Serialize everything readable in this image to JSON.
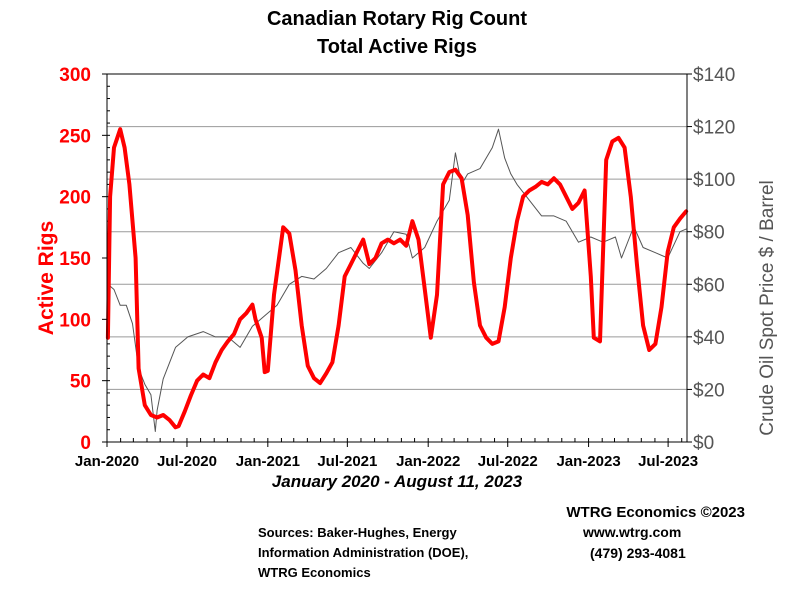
{
  "chart_data": {
    "type": "line",
    "title": "Canadian Rotary Rig Count",
    "subtitle": "Total Active Rigs",
    "xlabel": "January 2020 - August 11, 2023",
    "ylabel": "Active Rigs",
    "ylabel_right": "Crude Oil Spot Price $ / Barrel",
    "ylim": [
      0,
      300
    ],
    "ylim_right": [
      0,
      140
    ],
    "y_ticks": [
      "0",
      "50",
      "100",
      "150",
      "200",
      "250",
      "300"
    ],
    "y_ticks_right": [
      "$0",
      "$20",
      "$40",
      "$60",
      "$80",
      "$100",
      "$120",
      "$140"
    ],
    "x_ticks": [
      "Jan-2020",
      "Jul-2020",
      "Jan-2021",
      "Jul-2021",
      "Jan-2022",
      "Jul-2022",
      "Jan-2023",
      "Jul-2023"
    ],
    "grid": true,
    "colors": {
      "rigs": "#ff0000",
      "oil": "#555555",
      "left_axis_text": "#ff0000",
      "right_axis_text": "#555555"
    },
    "series": [
      {
        "axis": "left",
        "x": [
          "2020-01-03",
          "2020-01-08",
          "2020-01-17",
          "2020-01-31",
          "2020-02-10",
          "2020-02-21",
          "2020-03-06",
          "2020-03-13",
          "2020-03-27",
          "2020-04-10",
          "2020-04-24",
          "2020-05-08",
          "2020-05-22",
          "2020-06-05",
          "2020-06-12",
          "2020-06-26",
          "2020-07-10",
          "2020-07-24",
          "2020-08-07",
          "2020-08-21",
          "2020-09-04",
          "2020-09-18",
          "2020-10-02",
          "2020-10-16",
          "2020-10-30",
          "2020-11-13",
          "2020-11-27",
          "2020-12-04",
          "2020-12-18",
          "2020-12-25",
          "2021-01-01",
          "2021-01-15",
          "2021-02-05",
          "2021-02-19",
          "2021-03-05",
          "2021-03-19",
          "2021-04-02",
          "2021-04-16",
          "2021-04-30",
          "2021-05-14",
          "2021-05-28",
          "2021-06-11",
          "2021-06-25",
          "2021-07-09",
          "2021-07-23",
          "2021-08-06",
          "2021-08-20",
          "2021-09-03",
          "2021-09-17",
          "2021-10-01",
          "2021-10-15",
          "2021-10-29",
          "2021-11-12",
          "2021-11-26",
          "2021-12-10",
          "2021-12-24",
          "2022-01-07",
          "2022-01-21",
          "2022-02-04",
          "2022-02-18",
          "2022-03-04",
          "2022-03-18",
          "2022-04-01",
          "2022-04-15",
          "2022-04-29",
          "2022-05-13",
          "2022-05-27",
          "2022-06-10",
          "2022-06-24",
          "2022-07-08",
          "2022-07-22",
          "2022-08-05",
          "2022-08-19",
          "2022-09-02",
          "2022-09-16",
          "2022-09-30",
          "2022-10-14",
          "2022-10-28",
          "2022-11-11",
          "2022-11-25",
          "2022-12-09",
          "2022-12-23",
          "2023-01-06",
          "2023-01-13",
          "2023-01-27",
          "2023-02-10",
          "2023-02-24",
          "2023-03-10",
          "2023-03-24",
          "2023-04-07",
          "2023-04-21",
          "2023-05-05",
          "2023-05-19",
          "2023-06-02",
          "2023-06-16",
          "2023-06-30",
          "2023-07-14",
          "2023-07-28",
          "2023-08-11"
        ],
        "values": [
          85,
          200,
          240,
          255,
          240,
          210,
          150,
          60,
          30,
          22,
          20,
          22,
          18,
          12,
          13,
          25,
          38,
          50,
          55,
          52,
          65,
          75,
          82,
          88,
          100,
          105,
          112,
          100,
          85,
          57,
          58,
          120,
          175,
          170,
          140,
          95,
          62,
          52,
          48,
          56,
          65,
          95,
          135,
          145,
          155,
          165,
          145,
          150,
          162,
          165,
          162,
          165,
          160,
          180,
          165,
          125,
          85,
          120,
          210,
          220,
          222,
          215,
          185,
          130,
          95,
          85,
          80,
          82,
          110,
          150,
          180,
          200,
          205,
          208,
          212,
          210,
          215,
          210,
          200,
          190,
          195,
          205,
          135,
          85,
          82,
          230,
          245,
          248,
          240,
          200,
          145,
          95,
          75,
          80,
          110,
          155,
          175,
          182,
          188
        ]
      },
      {
        "axis": "right",
        "x": [
          "2020-01-03",
          "2020-01-17",
          "2020-01-31",
          "2020-02-14",
          "2020-02-28",
          "2020-03-13",
          "2020-03-27",
          "2020-04-10",
          "2020-04-20",
          "2020-04-24",
          "2020-05-08",
          "2020-05-22",
          "2020-06-05",
          "2020-06-19",
          "2020-07-03",
          "2020-08-07",
          "2020-09-04",
          "2020-10-02",
          "2020-10-30",
          "2020-11-27",
          "2020-12-25",
          "2021-01-22",
          "2021-02-19",
          "2021-03-19",
          "2021-04-16",
          "2021-05-14",
          "2021-06-11",
          "2021-07-09",
          "2021-08-06",
          "2021-08-20",
          "2021-09-17",
          "2021-10-15",
          "2021-11-12",
          "2021-11-26",
          "2021-12-24",
          "2022-01-21",
          "2022-02-18",
          "2022-03-04",
          "2022-03-18",
          "2022-04-01",
          "2022-04-29",
          "2022-05-27",
          "2022-06-10",
          "2022-06-24",
          "2022-07-08",
          "2022-07-22",
          "2022-08-19",
          "2022-09-16",
          "2022-10-14",
          "2022-11-11",
          "2022-12-09",
          "2023-01-06",
          "2023-02-03",
          "2023-03-03",
          "2023-03-17",
          "2023-04-14",
          "2023-05-05",
          "2023-06-02",
          "2023-06-30",
          "2023-07-28",
          "2023-08-11"
        ],
        "values": [
          60,
          58,
          52,
          52,
          45,
          28,
          22,
          18,
          4,
          12,
          24,
          30,
          36,
          38,
          40,
          42,
          40,
          40,
          36,
          44,
          48,
          52,
          60,
          63,
          62,
          66,
          72,
          74,
          68,
          66,
          72,
          80,
          79,
          70,
          74,
          84,
          92,
          110,
          98,
          102,
          104,
          112,
          119,
          108,
          102,
          98,
          92,
          86,
          86,
          84,
          76,
          78,
          76,
          78,
          70,
          82,
          74,
          72,
          70,
          80,
          81
        ]
      }
    ]
  },
  "footer": {
    "company": "WTRG Economics  ©2023",
    "website": "www.wtrg.com",
    "phone": "(479) 293-4081",
    "sources": [
      "Sources: Baker-Hughes, Energy",
      "Information Administration (DOE),",
      "WTRG Economics"
    ]
  }
}
